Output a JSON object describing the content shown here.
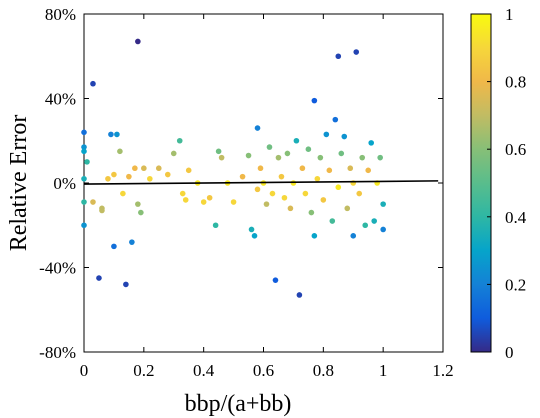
{
  "chart_data": {
    "type": "scatter",
    "xlabel": "bbp/(a+bb)",
    "ylabel": "Relative Error",
    "xlim": [
      0,
      1.2
    ],
    "ylim": [
      -0.8,
      0.8
    ],
    "x_ticks": [
      0,
      0.2,
      0.4,
      0.6,
      0.8,
      1.0,
      1.2
    ],
    "x_tick_labels": [
      "0",
      "0.2",
      "0.4",
      "0.6",
      "0.8",
      "1",
      "1.2"
    ],
    "y_ticks": [
      0.8,
      0.4,
      0.0,
      -0.4,
      -0.8
    ],
    "y_tick_labels": [
      "80%",
      "40%",
      "0%",
      "-40%",
      "-80%"
    ],
    "colorbar": {
      "range": [
        0,
        1
      ],
      "ticks": [
        0,
        0.2,
        0.4,
        0.6,
        0.8,
        1
      ],
      "tick_labels": [
        "0",
        "0.2",
        "0.4",
        "0.6",
        "0.8",
        "1"
      ],
      "colormap": "parula"
    },
    "trend_line": {
      "x": [
        0,
        1.0
      ],
      "y": [
        -0.005,
        0.01
      ]
    },
    "points": [
      {
        "x": 0.18,
        "y": 0.67,
        "c": 0.0
      },
      {
        "x": 0.03,
        "y": 0.47,
        "c": 0.05
      },
      {
        "x": 0.0,
        "y": 0.24,
        "c": 0.15
      },
      {
        "x": 0.0,
        "y": 0.17,
        "c": 0.25
      },
      {
        "x": 0.0,
        "y": 0.15,
        "c": 0.3
      },
      {
        "x": 0.01,
        "y": 0.1,
        "c": 0.4
      },
      {
        "x": 0.0,
        "y": 0.02,
        "c": 0.35
      },
      {
        "x": 0.0,
        "y": -0.09,
        "c": 0.4
      },
      {
        "x": 0.0,
        "y": -0.2,
        "c": 0.25
      },
      {
        "x": 0.05,
        "y": -0.45,
        "c": 0.05
      },
      {
        "x": 0.14,
        "y": -0.48,
        "c": 0.05
      },
      {
        "x": 0.09,
        "y": 0.23,
        "c": 0.2
      },
      {
        "x": 0.11,
        "y": 0.23,
        "c": 0.25
      },
      {
        "x": 0.1,
        "y": -0.3,
        "c": 0.15
      },
      {
        "x": 0.16,
        "y": -0.28,
        "c": 0.2
      },
      {
        "x": 0.03,
        "y": -0.09,
        "c": 0.75
      },
      {
        "x": 0.06,
        "y": -0.12,
        "c": 0.7
      },
      {
        "x": 0.06,
        "y": -0.13,
        "c": 0.7
      },
      {
        "x": 0.08,
        "y": 0.02,
        "c": 0.85
      },
      {
        "x": 0.1,
        "y": 0.04,
        "c": 0.85
      },
      {
        "x": 0.12,
        "y": 0.15,
        "c": 0.65
      },
      {
        "x": 0.13,
        "y": -0.05,
        "c": 0.9
      },
      {
        "x": 0.15,
        "y": 0.03,
        "c": 0.8
      },
      {
        "x": 0.17,
        "y": 0.07,
        "c": 0.8
      },
      {
        "x": 0.18,
        "y": -0.1,
        "c": 0.65
      },
      {
        "x": 0.19,
        "y": -0.14,
        "c": 0.6
      },
      {
        "x": 0.2,
        "y": 0.07,
        "c": 0.75
      },
      {
        "x": 0.22,
        "y": 0.02,
        "c": 0.9
      },
      {
        "x": 0.25,
        "y": 0.07,
        "c": 0.75
      },
      {
        "x": 0.28,
        "y": 0.04,
        "c": 0.85
      },
      {
        "x": 0.3,
        "y": 0.14,
        "c": 0.65
      },
      {
        "x": 0.32,
        "y": 0.2,
        "c": 0.45
      },
      {
        "x": 0.33,
        "y": -0.05,
        "c": 0.9
      },
      {
        "x": 0.34,
        "y": -0.08,
        "c": 0.9
      },
      {
        "x": 0.35,
        "y": 0.06,
        "c": 0.85
      },
      {
        "x": 0.38,
        "y": 0.0,
        "c": 0.95
      },
      {
        "x": 0.4,
        "y": -0.09,
        "c": 0.9
      },
      {
        "x": 0.42,
        "y": -0.07,
        "c": 0.85
      },
      {
        "x": 0.44,
        "y": -0.2,
        "c": 0.4
      },
      {
        "x": 0.45,
        "y": 0.15,
        "c": 0.55
      },
      {
        "x": 0.46,
        "y": 0.12,
        "c": 0.7
      },
      {
        "x": 0.48,
        "y": 0.0,
        "c": 0.95
      },
      {
        "x": 0.5,
        "y": -0.09,
        "c": 0.9
      },
      {
        "x": 0.53,
        "y": 0.03,
        "c": 0.8
      },
      {
        "x": 0.55,
        "y": 0.13,
        "c": 0.6
      },
      {
        "x": 0.56,
        "y": -0.22,
        "c": 0.35
      },
      {
        "x": 0.57,
        "y": -0.25,
        "c": 0.3
      },
      {
        "x": 0.58,
        "y": 0.26,
        "c": 0.2
      },
      {
        "x": 0.58,
        "y": -0.03,
        "c": 0.85
      },
      {
        "x": 0.59,
        "y": 0.07,
        "c": 0.8
      },
      {
        "x": 0.6,
        "y": 0.0,
        "c": 0.95
      },
      {
        "x": 0.61,
        "y": -0.1,
        "c": 0.7
      },
      {
        "x": 0.62,
        "y": 0.17,
        "c": 0.55
      },
      {
        "x": 0.63,
        "y": -0.05,
        "c": 0.9
      },
      {
        "x": 0.64,
        "y": -0.46,
        "c": 0.1
      },
      {
        "x": 0.65,
        "y": 0.12,
        "c": 0.65
      },
      {
        "x": 0.66,
        "y": 0.03,
        "c": 0.85
      },
      {
        "x": 0.67,
        "y": -0.07,
        "c": 0.9
      },
      {
        "x": 0.68,
        "y": 0.14,
        "c": 0.6
      },
      {
        "x": 0.69,
        "y": -0.12,
        "c": 0.75
      },
      {
        "x": 0.7,
        "y": 0.0,
        "c": 0.95
      },
      {
        "x": 0.71,
        "y": 0.2,
        "c": 0.35
      },
      {
        "x": 0.72,
        "y": -0.53,
        "c": 0.05
      },
      {
        "x": 0.73,
        "y": 0.07,
        "c": 0.8
      },
      {
        "x": 0.74,
        "y": -0.05,
        "c": 0.9
      },
      {
        "x": 0.75,
        "y": 0.16,
        "c": 0.55
      },
      {
        "x": 0.76,
        "y": -0.14,
        "c": 0.6
      },
      {
        "x": 0.77,
        "y": 0.39,
        "c": 0.1
      },
      {
        "x": 0.77,
        "y": -0.25,
        "c": 0.3
      },
      {
        "x": 0.78,
        "y": 0.02,
        "c": 0.9
      },
      {
        "x": 0.79,
        "y": 0.12,
        "c": 0.6
      },
      {
        "x": 0.8,
        "y": -0.08,
        "c": 0.85
      },
      {
        "x": 0.81,
        "y": 0.23,
        "c": 0.25
      },
      {
        "x": 0.82,
        "y": 0.06,
        "c": 0.8
      },
      {
        "x": 0.83,
        "y": -0.18,
        "c": 0.45
      },
      {
        "x": 0.84,
        "y": 0.3,
        "c": 0.15
      },
      {
        "x": 0.85,
        "y": 0.6,
        "c": 0.05
      },
      {
        "x": 0.85,
        "y": -0.02,
        "c": 0.95
      },
      {
        "x": 0.86,
        "y": 0.14,
        "c": 0.55
      },
      {
        "x": 0.87,
        "y": 0.22,
        "c": 0.25
      },
      {
        "x": 0.88,
        "y": -0.12,
        "c": 0.7
      },
      {
        "x": 0.89,
        "y": 0.07,
        "c": 0.75
      },
      {
        "x": 0.9,
        "y": -0.25,
        "c": 0.2
      },
      {
        "x": 0.9,
        "y": 0.0,
        "c": 0.9
      },
      {
        "x": 0.91,
        "y": 0.62,
        "c": 0.05
      },
      {
        "x": 0.92,
        "y": -0.05,
        "c": 0.85
      },
      {
        "x": 0.93,
        "y": 0.12,
        "c": 0.6
      },
      {
        "x": 0.94,
        "y": -0.2,
        "c": 0.4
      },
      {
        "x": 0.95,
        "y": 0.06,
        "c": 0.8
      },
      {
        "x": 0.96,
        "y": 0.19,
        "c": 0.3
      },
      {
        "x": 0.97,
        "y": -0.18,
        "c": 0.35
      },
      {
        "x": 0.98,
        "y": 0.0,
        "c": 0.95
      },
      {
        "x": 0.99,
        "y": 0.12,
        "c": 0.55
      },
      {
        "x": 1.0,
        "y": -0.22,
        "c": 0.2
      },
      {
        "x": 1.0,
        "y": -0.1,
        "c": 0.35
      }
    ]
  }
}
